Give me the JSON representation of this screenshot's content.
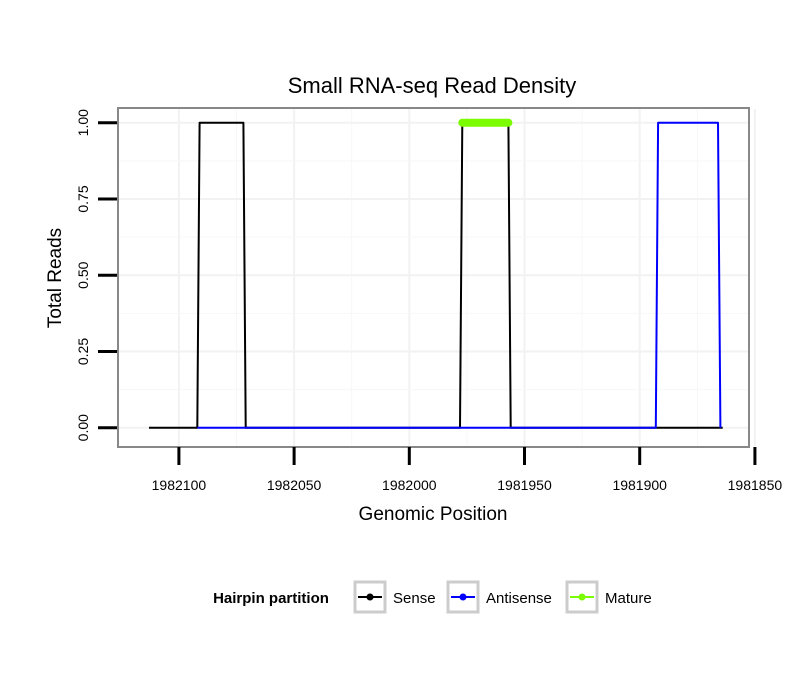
{
  "chart_data": {
    "type": "line",
    "title": "Small RNA-seq Read Density",
    "xlabel": "Genomic Position",
    "ylabel": "Total Reads",
    "x_reversed": true,
    "xlim": [
      1982126,
      1981853
    ],
    "ylim": [
      -0.06,
      1.045
    ],
    "x_ticks": [
      1982100,
      1982050,
      1982000,
      1981950,
      1981900,
      1981850
    ],
    "x_tick_labels": [
      "1982100",
      "1982050",
      "1982000",
      "1981950",
      "1981900",
      "1981850"
    ],
    "y_ticks": [
      0,
      0.25,
      0.5,
      0.75,
      1.0
    ],
    "y_tick_labels": [
      "0.00",
      "0.25",
      "0.50",
      "0.75",
      "1.00"
    ],
    "grid": true,
    "series": [
      {
        "name": "Sense",
        "color": "#000000",
        "x": [
          1982113,
          1982092,
          1982091,
          1982072,
          1982071,
          1981978,
          1981977,
          1981957,
          1981956,
          1981864
        ],
        "y": [
          0,
          0,
          1,
          1,
          0,
          0,
          1,
          1,
          0,
          0
        ]
      },
      {
        "name": "Antisense",
        "color": "#0000ff",
        "x": [
          1982092,
          1982071,
          1981978,
          1981956,
          1981893,
          1981892,
          1981866,
          1981865
        ],
        "y": [
          0,
          0,
          0,
          0,
          0,
          1,
          1,
          0
        ]
      },
      {
        "name": "Mature",
        "color": "#7cfc00",
        "x": [
          1981977,
          1981957
        ],
        "y": [
          1,
          1
        ]
      }
    ],
    "legend": {
      "title": "Hairpin partition",
      "position": "bottom",
      "entries": [
        "Sense",
        "Antisense",
        "Mature"
      ]
    }
  }
}
